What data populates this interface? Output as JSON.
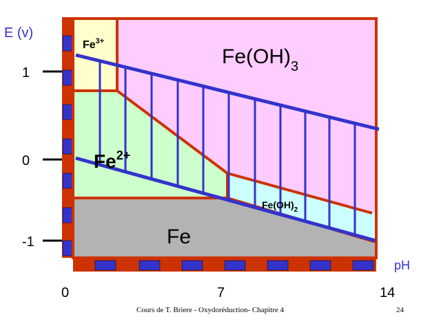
{
  "diagram": {
    "axis_labels": {
      "y": "E (v)",
      "x": "pH"
    },
    "y_ticks": [
      "1",
      "0",
      "-1"
    ],
    "x_ticks": [
      "0",
      "7",
      "14"
    ],
    "regions": {
      "fe3": {
        "base": "Fe",
        "sup": "3+"
      },
      "feoh3": {
        "base": "Fe(OH)",
        "sub": "3"
      },
      "fe2": {
        "base": "Fe",
        "sup": "2+"
      },
      "feoh2": {
        "base": "Fe(OH)",
        "sub": "2"
      },
      "fe": {
        "text": "Fe"
      }
    },
    "colors": {
      "fe3": "#ffffcc",
      "feoh3": "#ffccff",
      "fe2": "#ccffcc",
      "feoh2": "#ccffff",
      "fe": "#b3b3b3",
      "boundary": "#cc3300",
      "water_line": "#3333cc"
    }
  },
  "footer": {
    "caption": "Cours de T. Briere - Oxydoréduction- Chapitre 4",
    "page": "24"
  }
}
